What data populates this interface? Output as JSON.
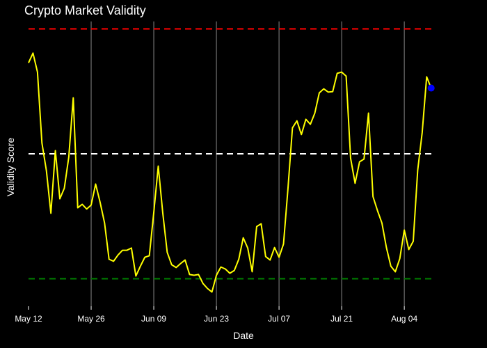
{
  "chart_data": {
    "type": "line",
    "title": "Crypto Market Validity",
    "x_label": "Date",
    "y_label": "Validity Score",
    "categories": [
      "May 12",
      null,
      null,
      null,
      null,
      null,
      null,
      null,
      null,
      null,
      null,
      null,
      null,
      null,
      "May 26",
      null,
      null,
      null,
      null,
      null,
      null,
      null,
      null,
      null,
      null,
      null,
      null,
      null,
      "Jun 09",
      null,
      null,
      null,
      null,
      null,
      null,
      null,
      null,
      null,
      null,
      null,
      null,
      null,
      "Jun 23",
      null,
      null,
      null,
      null,
      null,
      null,
      null,
      null,
      null,
      null,
      null,
      null,
      null,
      "Jul 07",
      null,
      null,
      null,
      null,
      null,
      null,
      null,
      null,
      null,
      null,
      null,
      null,
      null,
      "Jul 21",
      null,
      null,
      null,
      null,
      null,
      null,
      null,
      null,
      null,
      null,
      null,
      null,
      null,
      "Aug 04",
      null,
      null,
      null,
      null,
      null,
      null
    ],
    "series": [
      {
        "name": "Validity Score",
        "color": "#ffff00",
        "values": [
          0.864,
          0.903,
          0.827,
          0.543,
          0.432,
          0.262,
          0.513,
          0.32,
          0.362,
          0.487,
          0.724,
          0.284,
          0.298,
          0.279,
          0.295,
          0.379,
          0.306,
          0.223,
          0.078,
          0.07,
          0.095,
          0.114,
          0.114,
          0.123,
          0.011,
          0.05,
          0.086,
          0.092,
          0.265,
          0.451,
          0.265,
          0.106,
          0.056,
          0.045,
          0.061,
          0.075,
          0.017,
          0.014,
          0.017,
          -0.019,
          -0.039,
          -0.053,
          0.014,
          0.047,
          0.039,
          0.022,
          0.033,
          0.078,
          0.164,
          0.123,
          0.028,
          0.209,
          0.22,
          0.089,
          0.075,
          0.125,
          0.086,
          0.139,
          0.362,
          0.604,
          0.632,
          0.577,
          0.638,
          0.618,
          0.663,
          0.744,
          0.76,
          0.747,
          0.749,
          0.822,
          0.827,
          0.811,
          0.482,
          0.382,
          0.468,
          0.479,
          0.663,
          0.329,
          0.273,
          0.223,
          0.125,
          0.05,
          0.028,
          0.081,
          0.195,
          0.117,
          0.15,
          0.435,
          0.585,
          0.808,
          0.763
        ]
      }
    ],
    "last_point_color": "#0000ff",
    "hlines": [
      {
        "value": 1,
        "color": "#ff0000"
      },
      {
        "value": 0.5,
        "color": "#ffffff"
      },
      {
        "value": 0,
        "color": "#008000"
      }
    ],
    "ylim": [
      -0.11,
      1.03
    ],
    "xgrid": true,
    "grid_color": "#888888"
  }
}
